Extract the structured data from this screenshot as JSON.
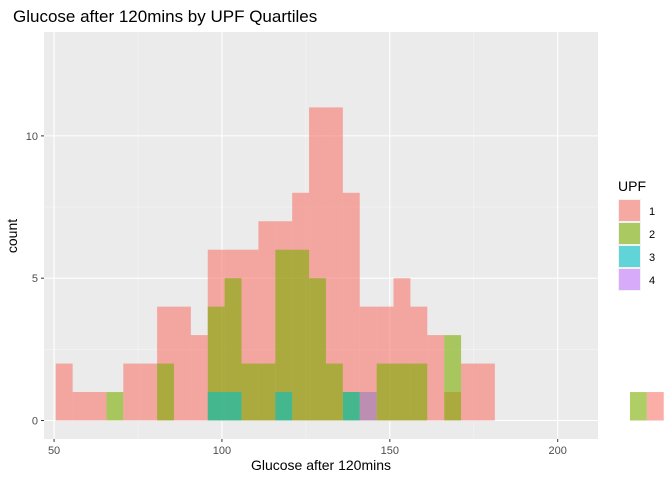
{
  "chart_data": {
    "type": "bar",
    "subtype": "histogram",
    "title": "Glucose after 120mins by UPF Quartiles",
    "xlabel": "Glucose after 120mins",
    "ylabel": "count",
    "xlim": [
      47,
      212
    ],
    "ylim": [
      -0.65,
      13.65
    ],
    "x_ticks": [
      50,
      100,
      150,
      200
    ],
    "y_ticks": [
      0,
      5,
      10
    ],
    "grid": true,
    "bin_width": 5.03,
    "bins_start": 50.5,
    "legend": {
      "title": "UPF",
      "position": "right",
      "entries": [
        "1",
        "2",
        "3",
        "4"
      ]
    },
    "series": [
      {
        "name": "1",
        "color": "#F8766D",
        "values": [
          2,
          1,
          1,
          0,
          2,
          2,
          4,
          4,
          3,
          6,
          6,
          6,
          7,
          7,
          8,
          11,
          11,
          8,
          4,
          4,
          5,
          4,
          3,
          1,
          2,
          2,
          0,
          0,
          0,
          0,
          0,
          0,
          0,
          0,
          0,
          1
        ]
      },
      {
        "name": "2",
        "color": "#7CAE00",
        "values": [
          0,
          0,
          0,
          1,
          0,
          0,
          2,
          0,
          0,
          4,
          5,
          2,
          2,
          6,
          6,
          5,
          2,
          1,
          1,
          2,
          2,
          2,
          0,
          3,
          0,
          0,
          0,
          0,
          0,
          0,
          0,
          0,
          0,
          0,
          1,
          0
        ]
      },
      {
        "name": "3",
        "color": "#00BFC4",
        "values": [
          0,
          0,
          0,
          0,
          0,
          0,
          0,
          0,
          0,
          1,
          1,
          0,
          0,
          1,
          0,
          0,
          0,
          1,
          0,
          0,
          0,
          0,
          0,
          0,
          0,
          0,
          0,
          0,
          0,
          0,
          0,
          0,
          0,
          0,
          0,
          0
        ]
      },
      {
        "name": "4",
        "color": "#C77CFF",
        "values": [
          0,
          0,
          0,
          0,
          0,
          0,
          0,
          0,
          0,
          0,
          0,
          0,
          0,
          0,
          0,
          0,
          0,
          0,
          1,
          0,
          0,
          0,
          0,
          0,
          0,
          0,
          0,
          0,
          0,
          0,
          0,
          0,
          0,
          0,
          0,
          0
        ]
      }
    ],
    "opacity": 0.6
  }
}
